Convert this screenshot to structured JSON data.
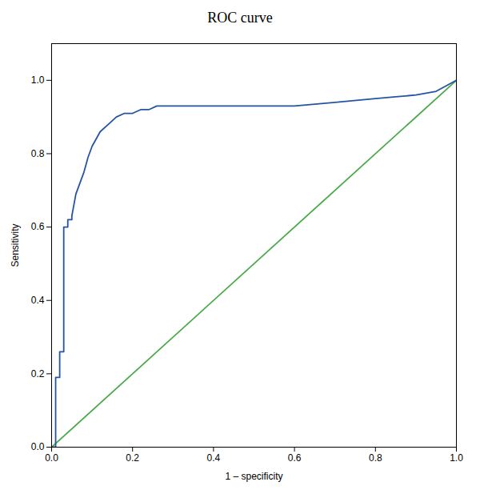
{
  "chart_data": {
    "type": "line",
    "title": "ROC curve",
    "xlabel": "1 – specificity",
    "ylabel": "Sensitivity",
    "xlim": [
      0.0,
      1.0
    ],
    "ylim": [
      0.0,
      1.1
    ],
    "xticks": [
      {
        "value": 0.0,
        "label": "0.0"
      },
      0.2,
      0.4,
      0.6,
      0.8,
      {
        "value": 1.0,
        "label": "1.0"
      }
    ],
    "yticks": [
      {
        "value": 0.0,
        "label": "0.0"
      },
      0.2,
      0.4,
      0.6,
      0.8,
      {
        "value": 1.0,
        "label": "1.0"
      }
    ],
    "grid": false,
    "series": [
      {
        "color": "#4aaa4a",
        "x": [
          0.0,
          1.0
        ],
        "values": [
          0.0,
          1.0
        ]
      },
      {
        "color": "#2555a0",
        "x": [
          0.0,
          0.01,
          0.01,
          0.02,
          0.02,
          0.03,
          0.03,
          0.04,
          0.04,
          0.05,
          0.05,
          0.06,
          0.07,
          0.08,
          0.09,
          0.1,
          0.12,
          0.14,
          0.16,
          0.18,
          0.2,
          0.22,
          0.24,
          0.26,
          0.28,
          0.3,
          0.32,
          0.34,
          0.4,
          0.5,
          0.6,
          0.7,
          0.8,
          0.85,
          0.9,
          0.95,
          1.0
        ],
        "values": [
          0.0,
          0.0,
          0.19,
          0.19,
          0.26,
          0.26,
          0.6,
          0.6,
          0.62,
          0.62,
          0.63,
          0.69,
          0.72,
          0.75,
          0.79,
          0.82,
          0.86,
          0.88,
          0.9,
          0.91,
          0.91,
          0.92,
          0.92,
          0.93,
          0.93,
          0.93,
          0.93,
          0.93,
          0.93,
          0.93,
          0.93,
          0.94,
          0.95,
          0.955,
          0.96,
          0.97,
          1.0
        ]
      }
    ]
  }
}
